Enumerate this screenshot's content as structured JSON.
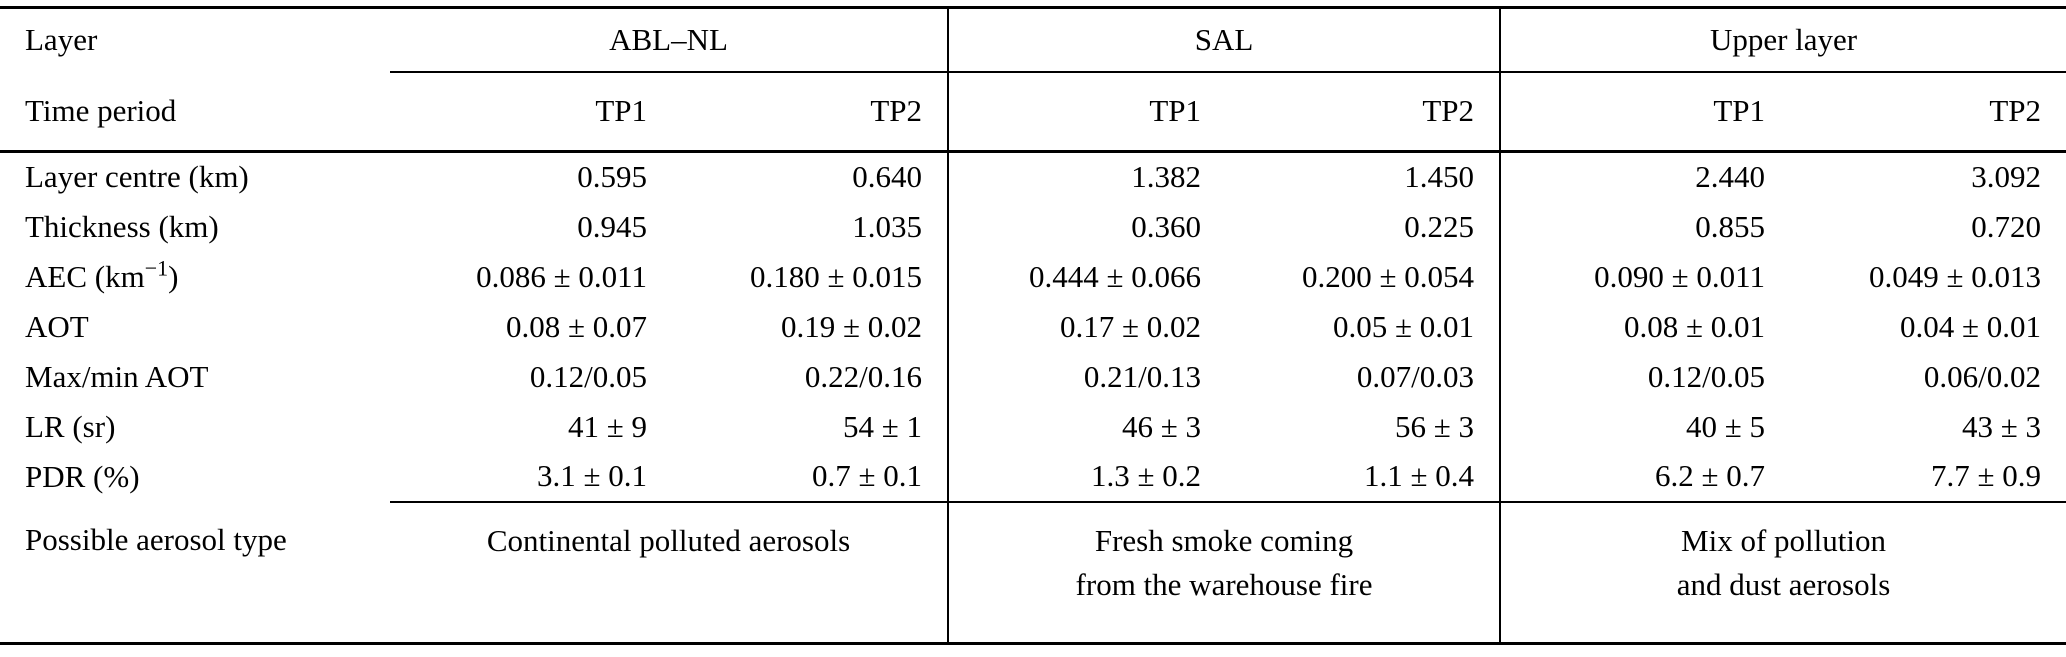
{
  "colors": {
    "background": "#ffffff",
    "text": "#000000",
    "rule": "#000000"
  },
  "table": {
    "header": {
      "layer_label": "Layer",
      "time_period_label": "Time period",
      "groups": [
        {
          "label": "ABL–NL"
        },
        {
          "label": "SAL"
        },
        {
          "label": "Upper layer"
        }
      ],
      "period_cols": [
        "TP1",
        "TP2",
        "TP1",
        "TP2",
        "TP1",
        "TP2"
      ]
    },
    "rows": [
      {
        "label": "Layer centre (km)",
        "values": [
          "0.595",
          "0.640",
          "1.382",
          "1.450",
          "2.440",
          "3.092"
        ]
      },
      {
        "label": "Thickness (km)",
        "values": [
          "0.945",
          "1.035",
          "0.360",
          "0.225",
          "0.855",
          "0.720"
        ]
      },
      {
        "label_pre": "AEC (km",
        "label_sup": "−1",
        "label_post": ")",
        "label": "AEC (km−1)",
        "values": [
          "0.086 ± 0.011",
          "0.180 ± 0.015",
          "0.444 ± 0.066",
          "0.200 ± 0.054",
          "0.090 ± 0.011",
          "0.049 ± 0.013"
        ]
      },
      {
        "label": "AOT",
        "values": [
          "0.08 ± 0.07",
          "0.19 ± 0.02",
          "0.17 ± 0.02",
          "0.05 ± 0.01",
          "0.08 ± 0.01",
          "0.04 ± 0.01"
        ]
      },
      {
        "label": "Max/min AOT",
        "values": [
          "0.12/0.05",
          "0.22/0.16",
          "0.21/0.13",
          "0.07/0.03",
          "0.12/0.05",
          "0.06/0.02"
        ]
      },
      {
        "label": "LR (sr)",
        "values": [
          "41 ± 9",
          "54 ± 1",
          "46 ± 3",
          "56 ± 3",
          "40 ± 5",
          "43 ± 3"
        ]
      },
      {
        "label": "PDR (%)",
        "values": [
          "3.1 ± 0.1",
          "0.7 ± 0.1",
          "1.3 ± 0.2",
          "1.1 ± 0.4",
          "6.2 ± 0.7",
          "7.7 ± 0.9"
        ]
      }
    ],
    "aerosol_row": {
      "label": "Possible aerosol type",
      "cells": [
        {
          "lines": [
            "Continental polluted aerosols"
          ]
        },
        {
          "lines": [
            "Fresh smoke coming",
            "from the warehouse fire"
          ]
        },
        {
          "lines": [
            "Mix of pollution",
            "and dust aerosols"
          ]
        }
      ]
    }
  }
}
